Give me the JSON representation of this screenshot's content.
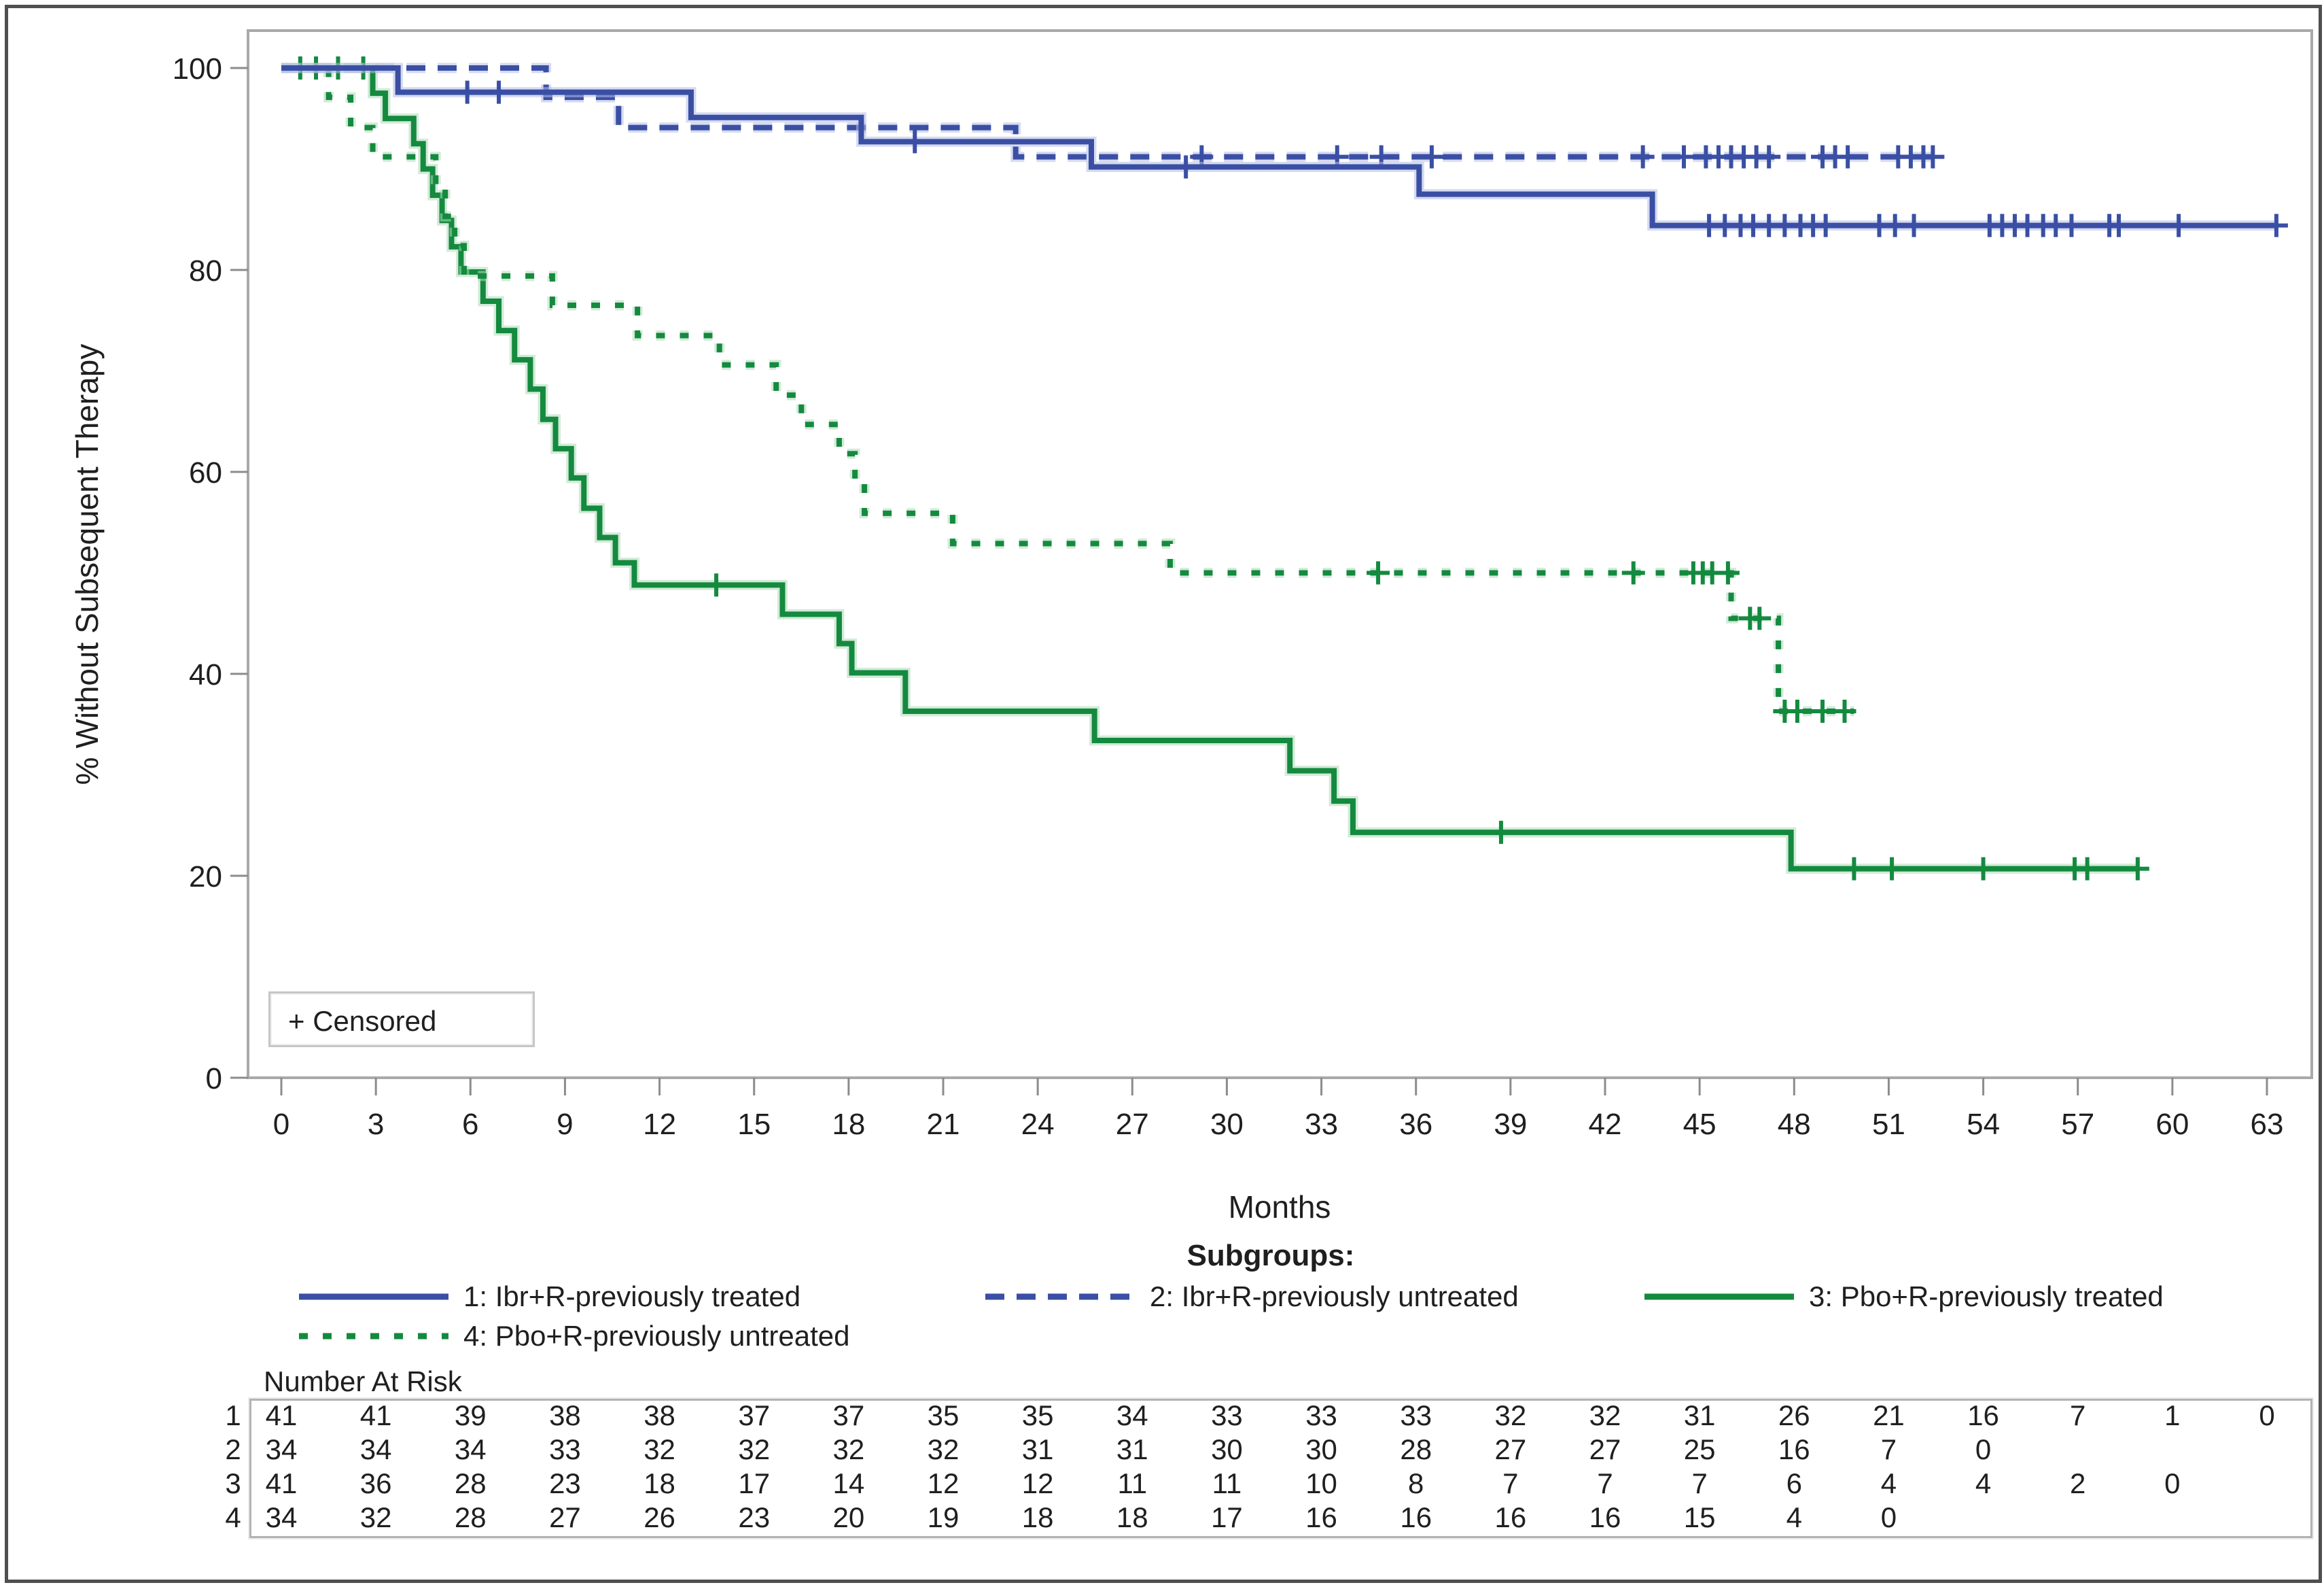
{
  "chart_data": {
    "type": "line",
    "subtype": "kaplan-meier-step-plot",
    "title": "",
    "xlabel": "Months",
    "ylabel": "% Without Subsequent Therapy",
    "xlim": [
      0,
      63
    ],
    "ylim": [
      0,
      100
    ],
    "x_ticks": [
      0,
      3,
      6,
      9,
      12,
      15,
      18,
      21,
      24,
      27,
      30,
      33,
      36,
      39,
      42,
      45,
      48,
      51,
      54,
      57,
      60,
      63
    ],
    "y_ticks": [
      0,
      20,
      40,
      60,
      80,
      100
    ],
    "grid": "off",
    "legend_title": "Subgroups:",
    "censored_label": "+ Censored",
    "colors": {
      "ibr_blue": "#3A4FA4",
      "ibr_blue_halo": "#B4BEE6",
      "pbo_green": "#148A3F",
      "pbo_green_halo": "#AFDBBA",
      "frame_gray": "#A9A9A9",
      "tick_gray": "#8C8C8C",
      "border_gray": "#4F4F4F",
      "table_border_gray": "#B3B3B3"
    },
    "series": [
      {
        "id": "1",
        "label": "1: Ibr+R-previously treated",
        "color": "#3A4FA4",
        "halo": "#B4BEE6",
        "dash": "solid",
        "steps": [
          [
            0,
            100
          ],
          [
            3.7,
            97.6
          ],
          [
            13,
            95.1
          ],
          [
            18.4,
            92.7
          ],
          [
            25.7,
            90.2
          ],
          [
            36.1,
            87.5
          ],
          [
            43.5,
            84.4
          ]
        ],
        "end": 63.3,
        "censors": [
          5.9,
          6.9,
          20.1,
          28.7,
          45.3,
          45.8,
          46.3,
          46.7,
          47.2,
          47.7,
          48.2,
          48.6,
          49.0,
          50.7,
          51.2,
          51.8,
          54.2,
          54.6,
          55.0,
          55.4,
          55.9,
          56.3,
          56.8,
          58.0,
          58.3,
          60.2,
          63.3
        ]
      },
      {
        "id": "2",
        "label": "2: Ibr+R-previously untreated",
        "color": "#3A4FA4",
        "halo": "#B4BEE6",
        "dash": "dashed",
        "steps": [
          [
            0,
            100
          ],
          [
            8.4,
            97.1
          ],
          [
            10.7,
            94.1
          ],
          [
            23.3,
            91.2
          ]
        ],
        "end": 52.4,
        "censors": [
          29.2,
          33.5,
          34.9,
          36.5,
          43.2,
          44.5,
          45.2,
          45.6,
          46.0,
          46.4,
          46.8,
          47.2,
          48.9,
          49.3,
          49.7,
          51.3,
          51.7,
          52.1,
          52.4
        ]
      },
      {
        "id": "3",
        "label": "3: Pbo+R-previously treated",
        "color": "#148A3F",
        "halo": "#AFDBBA",
        "dash": "solid",
        "steps": [
          [
            0,
            100
          ],
          [
            2.9,
            97.5
          ],
          [
            3.3,
            95.0
          ],
          [
            4.2,
            92.5
          ],
          [
            4.5,
            90.0
          ],
          [
            4.8,
            87.4
          ],
          [
            5.1,
            84.9
          ],
          [
            5.4,
            82.3
          ],
          [
            5.7,
            79.8
          ],
          [
            6.4,
            76.9
          ],
          [
            6.9,
            74.0
          ],
          [
            7.4,
            71.1
          ],
          [
            7.9,
            68.2
          ],
          [
            8.3,
            65.2
          ],
          [
            8.7,
            62.3
          ],
          [
            9.2,
            59.4
          ],
          [
            9.6,
            56.4
          ],
          [
            10.1,
            53.5
          ],
          [
            10.6,
            51.0
          ],
          [
            11.2,
            48.8
          ],
          [
            15.9,
            45.9
          ],
          [
            17.7,
            43.0
          ],
          [
            18.1,
            40.1
          ],
          [
            19.8,
            36.3
          ],
          [
            25.8,
            33.4
          ],
          [
            32.0,
            30.4
          ],
          [
            33.4,
            27.4
          ],
          [
            34.0,
            24.3
          ],
          [
            47.9,
            20.7
          ]
        ],
        "end": 58.9,
        "censors": [
          0.6,
          1.1,
          1.8,
          2.6,
          13.8,
          38.7,
          49.9,
          51.1,
          54.0,
          56.9,
          57.3,
          58.9
        ]
      },
      {
        "id": "4",
        "label": "4: Pbo+R-previously untreated",
        "color": "#148A3F",
        "halo": "#AFDBBA",
        "dash": "dashed",
        "steps": [
          [
            0,
            100
          ],
          [
            1.5,
            97.1
          ],
          [
            2.2,
            94.1
          ],
          [
            2.9,
            91.2
          ],
          [
            4.9,
            88.2
          ],
          [
            5.2,
            85.3
          ],
          [
            5.5,
            82.4
          ],
          [
            5.8,
            79.4
          ],
          [
            8.6,
            76.5
          ],
          [
            11.3,
            73.5
          ],
          [
            13.9,
            70.6
          ],
          [
            15.7,
            67.6
          ],
          [
            16.5,
            64.7
          ],
          [
            17.7,
            61.8
          ],
          [
            18.2,
            58.8
          ],
          [
            18.5,
            55.9
          ],
          [
            21.3,
            52.9
          ],
          [
            28.2,
            50.0
          ],
          [
            46.0,
            45.5
          ],
          [
            47.5,
            36.3
          ]
        ],
        "end": 49.9,
        "censors": [
          34.8,
          42.9,
          44.8,
          45.1,
          45.4,
          45.9,
          46.6,
          46.9,
          47.7,
          48.1,
          48.9,
          49.6
        ]
      }
    ],
    "number_at_risk": {
      "label": "Number At Risk",
      "row_ids": [
        "1",
        "2",
        "3",
        "4"
      ],
      "rows": [
        [
          41,
          41,
          39,
          38,
          38,
          37,
          37,
          35,
          35,
          34,
          33,
          33,
          33,
          32,
          32,
          31,
          26,
          21,
          16,
          7,
          1,
          0
        ],
        [
          34,
          34,
          34,
          33,
          32,
          32,
          32,
          32,
          31,
          31,
          30,
          30,
          28,
          27,
          27,
          25,
          16,
          7,
          0
        ],
        [
          41,
          36,
          28,
          23,
          18,
          17,
          14,
          12,
          12,
          11,
          11,
          10,
          8,
          7,
          7,
          7,
          6,
          4,
          4,
          2,
          0
        ],
        [
          34,
          32,
          28,
          27,
          26,
          23,
          20,
          19,
          18,
          18,
          17,
          16,
          16,
          16,
          16,
          15,
          4,
          0
        ]
      ]
    }
  }
}
